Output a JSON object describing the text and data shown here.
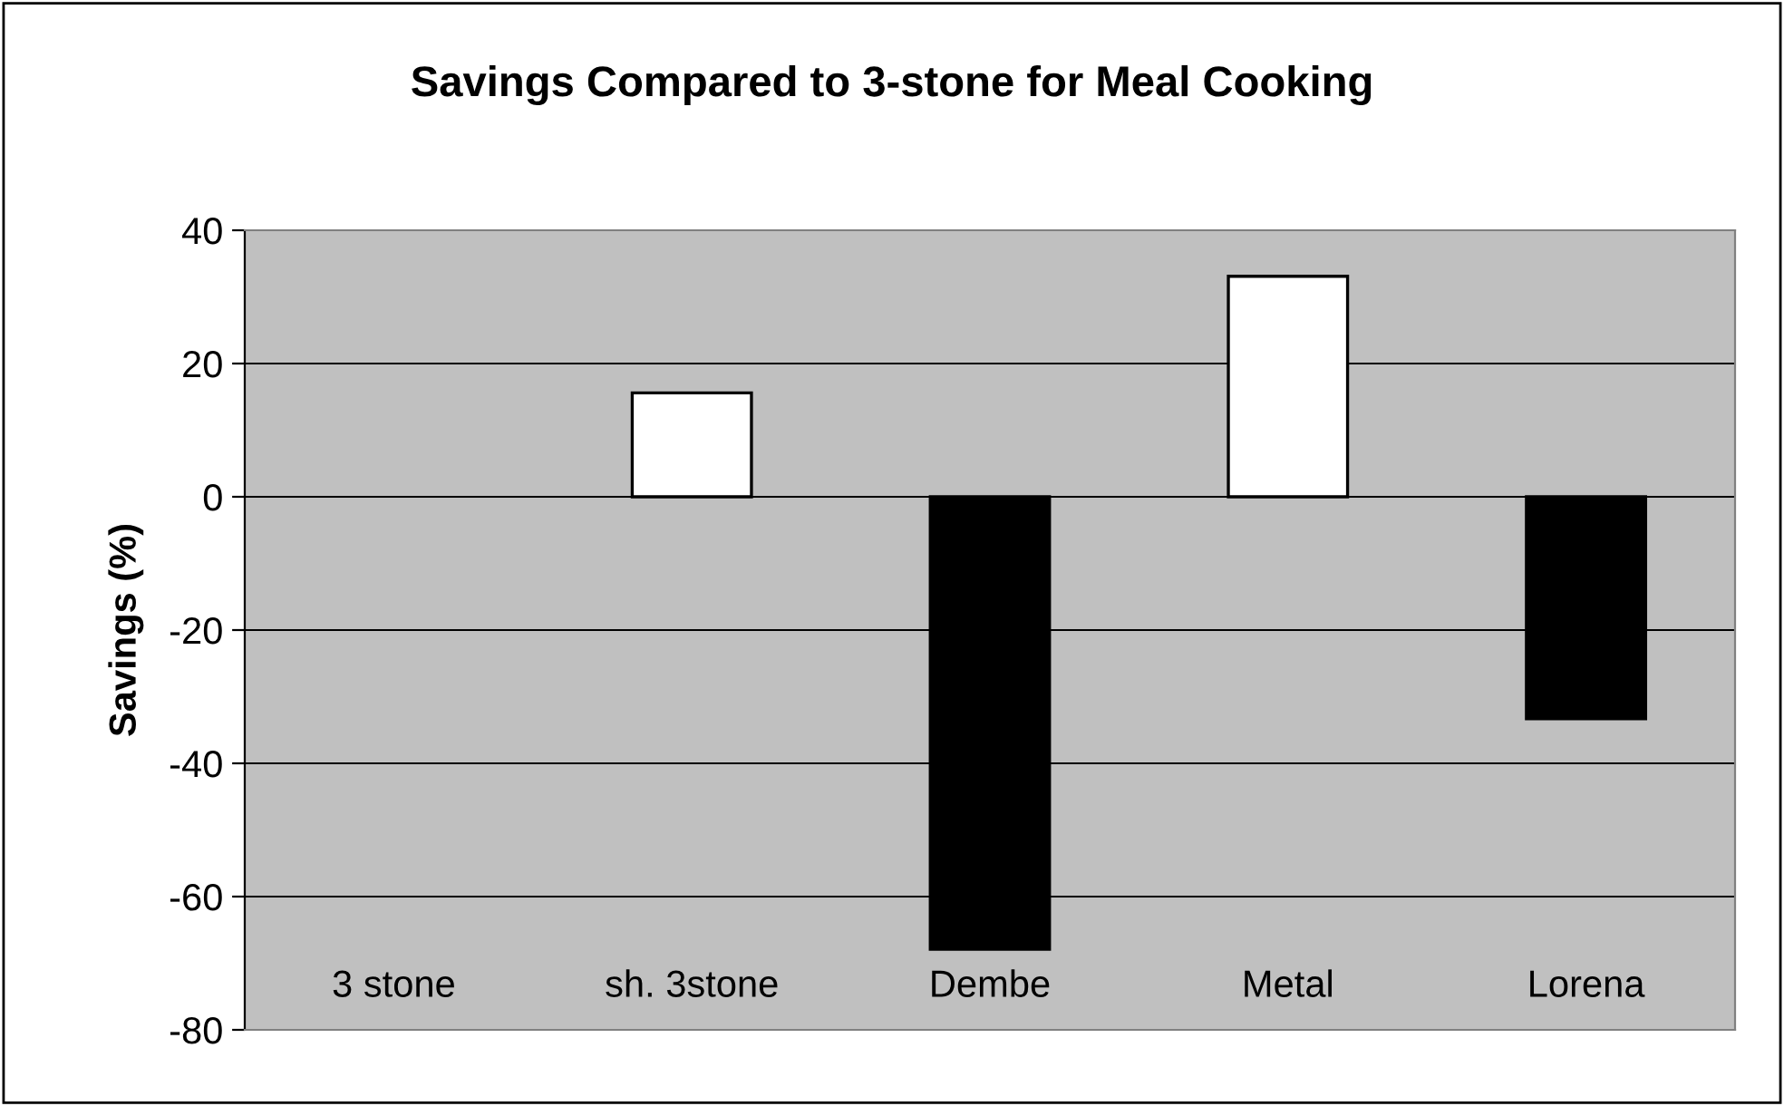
{
  "chart_data": {
    "type": "bar",
    "title": "Savings Compared to 3-stone for Meal Cooking",
    "ylabel": "Savings (%)",
    "categories": [
      "3 stone",
      "sh. 3stone",
      "Dembe",
      "Metal",
      "Lorena"
    ],
    "values": [
      0,
      15.6,
      -67.9,
      33.1,
      -33.3
    ],
    "colors": [
      "#ffffff",
      "#ffffff",
      "#000000",
      "#ffffff",
      "#000000"
    ],
    "ylim": [
      -80,
      40
    ],
    "yticks": [
      -80,
      -60,
      -40,
      -20,
      0,
      20,
      40
    ],
    "grid": "y",
    "legend": false
  }
}
